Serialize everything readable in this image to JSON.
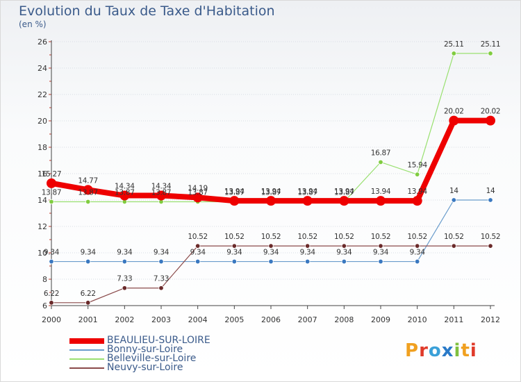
{
  "title": "Evolution du Taux de Taxe d'Habitation",
  "unit": "(en %)",
  "logo": "Proxiti",
  "colors": {
    "text": "#3a5a8a",
    "grid": "#d8dde4",
    "axis": "#444444"
  },
  "chart_data": {
    "type": "line",
    "x": [
      "2000",
      "2001",
      "2002",
      "2003",
      "2004",
      "2005",
      "2006",
      "2007",
      "2008",
      "2009",
      "2010",
      "2011",
      "2012"
    ],
    "ylim": [
      6,
      26
    ],
    "yticks": [
      6,
      8,
      10,
      12,
      14,
      16,
      18,
      20,
      22,
      24,
      26
    ],
    "grid": true,
    "legend_position": "bottom-left",
    "series": [
      {
        "name": "BEAULIEU-SUR-LOIRE",
        "color": "#ee0000",
        "width": 8,
        "marker": 7,
        "values": [
          15.27,
          14.77,
          14.34,
          14.34,
          14.19,
          13.94,
          13.94,
          13.94,
          13.94,
          13.94,
          13.94,
          20.02,
          20.02
        ],
        "labels": [
          "15.27",
          "14.77",
          "14.34",
          "14.34",
          "14.19",
          "13.94",
          "13.94",
          "13.94",
          "13.94",
          "13.94",
          "13.94",
          "20.02",
          "20.02"
        ]
      },
      {
        "name": "Bonny-sur-Loire",
        "color": "#6a9ccc",
        "width": 1.2,
        "marker": 3.3,
        "marker_fill": "#3a78c0",
        "values": [
          9.34,
          9.34,
          9.34,
          9.34,
          9.34,
          9.34,
          9.34,
          9.34,
          9.34,
          9.34,
          9.34,
          14,
          14
        ],
        "labels": [
          "9.34",
          "9.34",
          "9.34",
          "9.34",
          "9.34",
          "9.34",
          "9.34",
          "9.34",
          "9.34",
          "9.34",
          "9.34",
          "14",
          "14"
        ]
      },
      {
        "name": "Belleville-sur-Loire",
        "color": "#99e070",
        "width": 1.2,
        "marker": 3.3,
        "marker_fill": "#80cc40",
        "values": [
          13.87,
          13.87,
          13.87,
          13.87,
          13.87,
          13.87,
          13.87,
          13.87,
          13.87,
          16.87,
          15.94,
          25.11,
          25.11
        ],
        "labels": [
          "13.87",
          "13.87",
          "13.87",
          "13.87",
          "13.87",
          "13.87",
          "13.87",
          "13.87",
          "13.87",
          "16.87",
          "15.94",
          "25.11",
          "25.11"
        ]
      },
      {
        "name": "Neuvy-sur-Loire",
        "color": "#8a4a4a",
        "width": 1.2,
        "marker": 3.3,
        "marker_fill": "#6a2a2a",
        "values": [
          6.22,
          6.22,
          7.33,
          7.33,
          10.52,
          10.52,
          10.52,
          10.52,
          10.52,
          10.52,
          10.52,
          10.52,
          10.52
        ],
        "labels": [
          "6.22",
          "6.22",
          "7.33",
          "7.33",
          "10.52",
          "10.52",
          "10.52",
          "10.52",
          "10.52",
          "10.52",
          "10.52",
          "10.52",
          "10.52"
        ]
      }
    ]
  }
}
